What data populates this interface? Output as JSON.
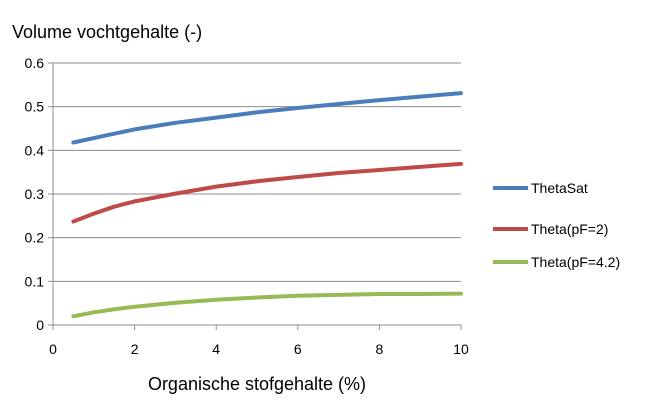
{
  "chart_data": {
    "type": "line",
    "title": "Volume vochtgehalte (-)",
    "xlabel": "Organische stofgehalte (%)",
    "ylabel": "",
    "xlim": [
      0,
      10
    ],
    "ylim": [
      0,
      0.6
    ],
    "xticks": [
      0,
      2,
      4,
      6,
      8,
      10
    ],
    "yticks": [
      0,
      0.1,
      0.2,
      0.3,
      0.4,
      0.5,
      0.6
    ],
    "ytick_labels": [
      "0",
      "0.1",
      "0.2",
      "0.3",
      "0.4",
      "0.5",
      "0.6"
    ],
    "grid": "horizontal",
    "legend_position": "right",
    "x": [
      0.5,
      1,
      1.5,
      2,
      3,
      4,
      5,
      6,
      7,
      8,
      9,
      10
    ],
    "series": [
      {
        "name": "ThetaSat",
        "color": "#4a7ebb",
        "values": [
          0.418,
          0.428,
          0.438,
          0.448,
          0.463,
          0.475,
          0.487,
          0.497,
          0.506,
          0.515,
          0.523,
          0.531
        ]
      },
      {
        "name": "Theta(pF=2)",
        "color": "#be4b48",
        "values": [
          0.237,
          0.255,
          0.271,
          0.283,
          0.301,
          0.317,
          0.329,
          0.339,
          0.348,
          0.355,
          0.362,
          0.369
        ]
      },
      {
        "name": "Theta(pF=4.2)",
        "color": "#98b954",
        "values": [
          0.02,
          0.029,
          0.036,
          0.042,
          0.051,
          0.058,
          0.063,
          0.067,
          0.069,
          0.071,
          0.071,
          0.072
        ]
      }
    ]
  }
}
